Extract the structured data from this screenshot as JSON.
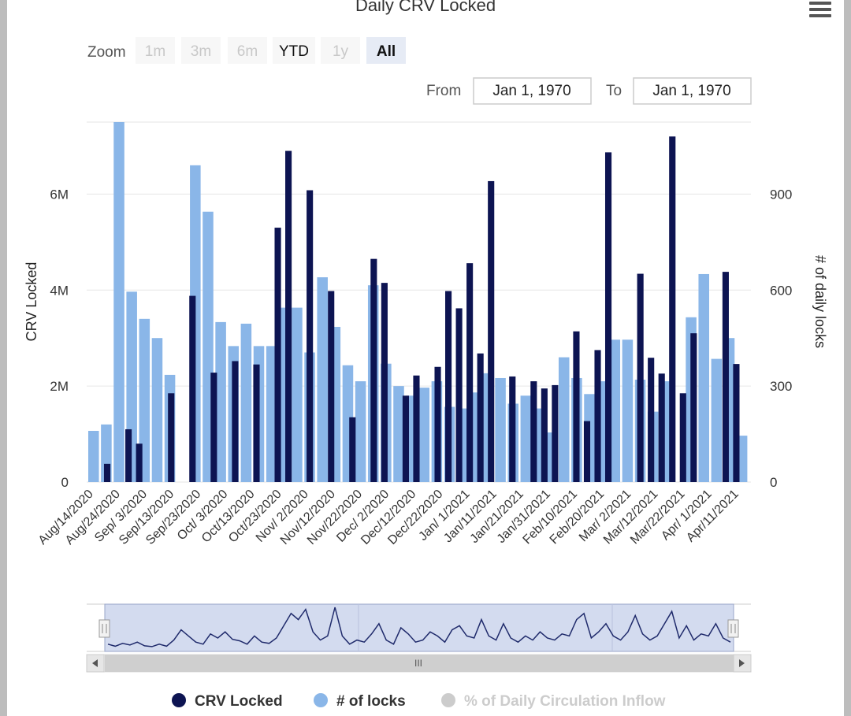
{
  "chart": {
    "title": "Daily CRV Locked",
    "menu_icon": "hamburger-menu-icon"
  },
  "zoom": {
    "label": "Zoom",
    "buttons": [
      {
        "label": "1m",
        "state": "disabled"
      },
      {
        "label": "3m",
        "state": "disabled"
      },
      {
        "label": "6m",
        "state": "disabled"
      },
      {
        "label": "YTD",
        "state": "normal"
      },
      {
        "label": "1y",
        "state": "disabled"
      },
      {
        "label": "All",
        "state": "selected"
      }
    ]
  },
  "range": {
    "from_label": "From",
    "from_value": "Jan 1, 1970",
    "to_label": "To",
    "to_value": "Jan 1, 1970"
  },
  "navigator": {
    "scrollbar_grip": "III"
  },
  "legend": [
    {
      "label": "CRV Locked",
      "color": "#0d1452",
      "active": true
    },
    {
      "label": "# of locks",
      "color": "#8ab6e8",
      "active": true
    },
    {
      "label": "% of Daily Circulation Inflow",
      "color": "#cccccc",
      "active": false
    }
  ],
  "chart_data": {
    "type": "bar",
    "title": "Daily CRV Locked",
    "ylabel": "CRV Locked",
    "ylabel_right": "# of daily locks",
    "ylim": [
      0,
      7500000
    ],
    "ylim_right": [
      0,
      1125
    ],
    "yticks": [
      "0",
      "2M",
      "4M",
      "6M"
    ],
    "yticks_right": [
      "0",
      "300",
      "600",
      "900"
    ],
    "xticks": [
      "Aug/14/2020",
      "Aug/24/2020",
      "Sep/ 3/2020",
      "Sep/13/2020",
      "Sep/23/2020",
      "Oct/ 3/2020",
      "Oct/13/2020",
      "Oct/23/2020",
      "Nov/ 2/2020",
      "Nov/12/2020",
      "Nov/22/2020",
      "Dec/ 2/2020",
      "Dec/12/2020",
      "Dec/22/2020",
      "Jan/ 1/2021",
      "Jan/11/2021",
      "Jan/21/2021",
      "Jan/31/2021",
      "Feb/10/2021",
      "Feb/20/2021",
      "Mar/ 2/2021",
      "Mar/12/2021",
      "Mar/22/2021",
      "Apr/ 1/2021",
      "Apr/11/2021"
    ],
    "grid": true,
    "legend_position": "bottom",
    "series": [
      {
        "name": "CRV Locked",
        "color": "#0d1452",
        "axis": "left",
        "values": [
          0,
          380000,
          0,
          1100000,
          800000,
          0,
          0,
          1850000,
          0,
          3880000,
          0,
          2280000,
          0,
          2520000,
          0,
          2450000,
          0,
          5300000,
          6900000,
          0,
          6080000,
          0,
          3980000,
          0,
          1350000,
          0,
          4650000,
          4150000,
          0,
          1800000,
          2220000,
          0,
          2400000,
          3980000,
          3620000,
          4560000,
          2680000,
          6270000,
          0,
          2200000,
          0,
          2100000,
          1950000,
          2020000,
          0,
          3140000,
          1270000,
          2750000,
          6870000,
          0,
          0,
          4340000,
          2590000,
          2260000,
          7200000,
          1850000,
          3100000,
          0,
          0,
          4380000,
          2460000,
          0
        ]
      },
      {
        "name": "# of locks",
        "color": "#8ab6e8",
        "axis": "right",
        "values": [
          160,
          180,
          1125,
          595,
          510,
          450,
          335,
          0,
          990,
          845,
          500,
          425,
          495,
          425,
          425,
          545,
          545,
          405,
          640,
          485,
          365,
          315,
          615,
          370,
          300,
          270,
          295,
          315,
          235,
          230,
          280,
          340,
          325,
          245,
          270,
          230,
          155,
          390,
          325,
          275,
          315,
          445,
          445,
          320,
          220,
          315,
          0,
          515,
          650,
          385,
          450,
          145
        ]
      }
    ],
    "navigator": {
      "values": [
        0.1,
        0.05,
        0.12,
        0.08,
        0.15,
        0.06,
        0.04,
        0.1,
        0.05,
        0.2,
        0.45,
        0.3,
        0.15,
        0.1,
        0.35,
        0.25,
        0.4,
        0.22,
        0.18,
        0.1,
        0.3,
        0.15,
        0.12,
        0.25,
        0.55,
        0.85,
        0.7,
        0.95,
        0.4,
        0.2,
        0.3,
        1.0,
        0.3,
        0.1,
        0.2,
        0.15,
        0.35,
        0.6,
        0.2,
        0.1,
        0.5,
        0.35,
        0.15,
        0.2,
        0.4,
        0.3,
        0.15,
        0.45,
        0.55,
        0.3,
        0.25,
        0.7,
        0.3,
        0.2,
        0.6,
        0.25,
        0.15,
        0.3,
        0.2,
        0.4,
        0.25,
        0.2,
        0.35,
        0.3,
        0.7,
        0.85,
        0.25,
        0.4,
        0.6,
        0.3,
        0.2,
        0.4,
        0.8,
        0.35,
        0.2,
        0.3,
        0.6,
        0.9,
        0.25,
        0.55,
        0.2,
        0.35,
        0.3,
        0.6,
        0.25,
        0.15
      ]
    }
  }
}
